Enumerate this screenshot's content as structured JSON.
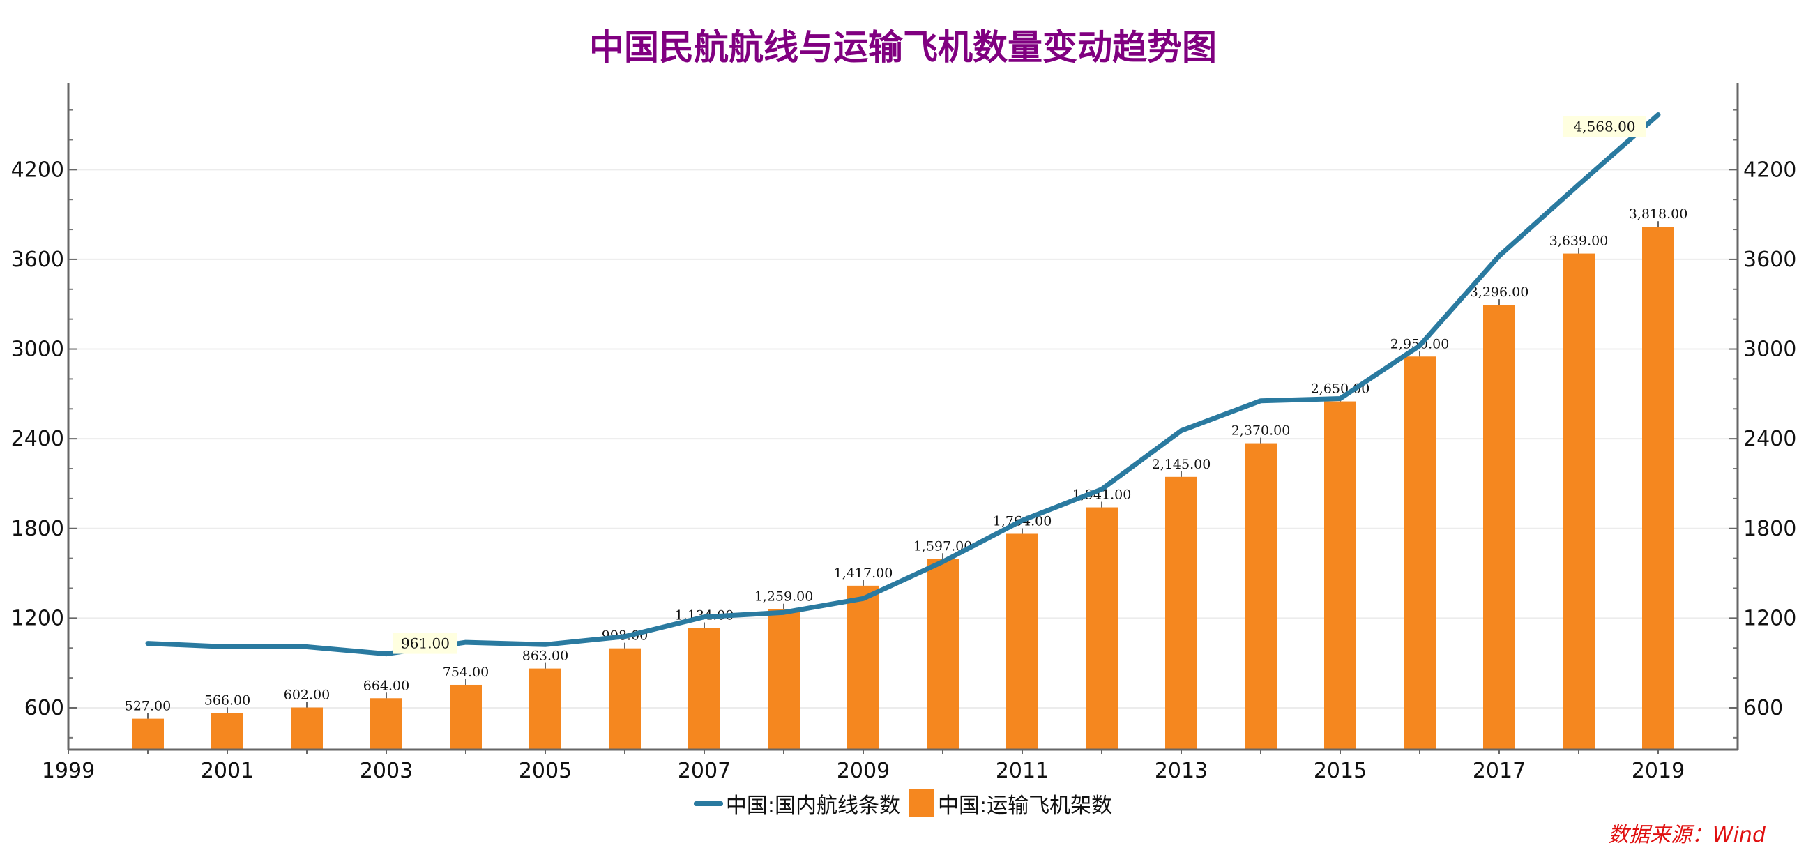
{
  "title": "中国民航航线与运输飞机数量变动趋势图",
  "source": "数据来源：Wind",
  "colors": {
    "title": "#800080",
    "line": "#2A7AA0",
    "bar": "#F5871F",
    "source": "#E01010",
    "annotation_bg": "#FFFFE0"
  },
  "chart_data": {
    "type": "bar+line",
    "title": "中国民航航线与运输飞机数量变动趋势图",
    "x": [
      2000,
      2001,
      2002,
      2003,
      2004,
      2005,
      2006,
      2007,
      2008,
      2009,
      2010,
      2011,
      2012,
      2013,
      2014,
      2015,
      2016,
      2017,
      2018,
      2019
    ],
    "xlim": [
      1999,
      2020
    ],
    "x_tick_labels": [
      "1999",
      "2001",
      "2003",
      "2005",
      "2007",
      "2009",
      "2011",
      "2013",
      "2015",
      "2017",
      "2019"
    ],
    "ylim": [
      320,
      4780
    ],
    "y_tick_labels": [
      "600",
      "1200",
      "1800",
      "2400",
      "3000",
      "3600",
      "4200"
    ],
    "grid": "horizontal",
    "legend_position": "bottom",
    "series": [
      {
        "name": "中国:国内航线条数",
        "type": "line",
        "values": [
          1031,
          1008,
          1008,
          961,
          1038,
          1023,
          1077,
          1208,
          1238,
          1331,
          1577,
          1854,
          2062,
          2454,
          2654,
          2669,
          3023,
          3623,
          4100,
          4568
        ],
        "annotations": [
          {
            "x": 2003,
            "label": "961.00"
          },
          {
            "x": 2019,
            "label": "4,568.00"
          }
        ]
      },
      {
        "name": "中国:运输飞机架数",
        "type": "bar",
        "values": [
          527,
          566,
          602,
          664,
          754,
          863,
          998,
          1134,
          1259,
          1417,
          1597,
          1764,
          1941,
          2145,
          2370,
          2650,
          2950,
          3296,
          3639,
          3818
        ],
        "labels": [
          "527.00",
          "566.00",
          "602.00",
          "664.00",
          "754.00",
          "863.00",
          "998.00",
          "1,134.00",
          "1,259.00",
          "1,417.00",
          "1,597.00",
          "1,764.00",
          "1,941.00",
          "2,145.00",
          "2,370.00",
          "2,650.00",
          "2,950.00",
          "3,296.00",
          "3,639.00",
          "3,818.00"
        ]
      }
    ]
  }
}
